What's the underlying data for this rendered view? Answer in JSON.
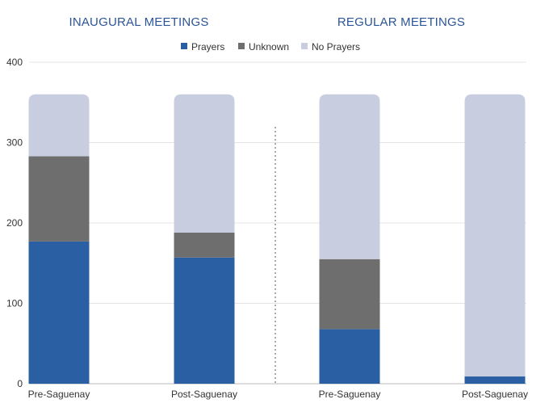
{
  "chart_data": {
    "type": "bar",
    "stacked": true,
    "panels": [
      {
        "title": "INAUGURAL MEETINGS",
        "categories": [
          "Pre-Saguenay",
          "Post-Saguenay"
        ]
      },
      {
        "title": "REGULAR MEETINGS",
        "categories": [
          "Pre-Saguenay",
          "Post-Saguenay"
        ]
      }
    ],
    "categories": [
      "Pre-Saguenay",
      "Post-Saguenay",
      "Pre-Saguenay",
      "Post-Saguenay"
    ],
    "series": [
      {
        "name": "Prayers",
        "color": "#2b5fa3",
        "values": [
          177,
          157,
          68,
          9
        ]
      },
      {
        "name": "Unknown",
        "color": "#6e6e6e",
        "values": [
          106,
          31,
          87,
          0
        ]
      },
      {
        "name": "No Prayers",
        "color": "#c9cde0",
        "values": [
          77,
          172,
          205,
          351
        ]
      }
    ],
    "ylim": [
      0,
      400
    ],
    "yticks": [
      0,
      100,
      200,
      300,
      400
    ],
    "grid": true,
    "legend_position": "top-center",
    "divider": "dotted vertical line between panels"
  }
}
